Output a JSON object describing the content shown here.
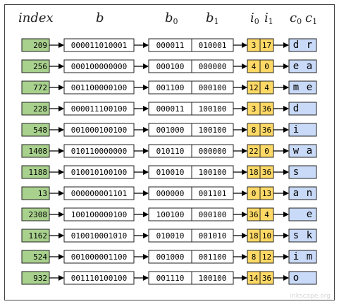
{
  "headers": {
    "index": "index",
    "b": "b",
    "b0": "b",
    "b0_sub": "0",
    "b1": "b",
    "b1_sub": "1",
    "i0": "i",
    "i0_sub": "0",
    "i1": "i",
    "i1_sub": "1",
    "c0": "c",
    "c0_sub": "0",
    "c1": "c",
    "c1_sub": "1"
  },
  "colors": {
    "index_fill": "#a9d18e",
    "bits_fill": "#ffffff",
    "i_fill": "#ffd966",
    "c_fill": "#c9daf8",
    "stroke": "#222222"
  },
  "rows": [
    {
      "index": "209",
      "b": "000011010001",
      "b0": "000011",
      "b1": "010001",
      "i0": "3",
      "i1": "17",
      "c0": "d",
      "c1": "r"
    },
    {
      "index": "256",
      "b": "000100000000",
      "b0": "000100",
      "b1": "000000",
      "i0": "4",
      "i1": "0",
      "c0": "e",
      "c1": "a"
    },
    {
      "index": "772",
      "b": "001100000100",
      "b0": "001100",
      "b1": "000100",
      "i0": "12",
      "i1": "4",
      "c0": "m",
      "c1": "e"
    },
    {
      "index": "228",
      "b": "000011100100",
      "b0": "000011",
      "b1": "100100",
      "i0": "3",
      "i1": "36",
      "c0": "d",
      "c1": ""
    },
    {
      "index": "548",
      "b": "001000100100",
      "b0": "001000",
      "b1": "100100",
      "i0": "8",
      "i1": "36",
      "c0": "i",
      "c1": ""
    },
    {
      "index": "1408",
      "b": "010110000000",
      "b0": "010110",
      "b1": "000000",
      "i0": "22",
      "i1": "0",
      "c0": "w",
      "c1": "a"
    },
    {
      "index": "1188",
      "b": "010010100100",
      "b0": "010010",
      "b1": "100100",
      "i0": "18",
      "i1": "36",
      "c0": "s",
      "c1": ""
    },
    {
      "index": "13",
      "b": "000000001101",
      "b0": "000000",
      "b1": "001101",
      "i0": "0",
      "i1": "13",
      "c0": "a",
      "c1": "n"
    },
    {
      "index": "2308",
      "b": "100100000100",
      "b0": "100100",
      "b1": "000100",
      "i0": "36",
      "i1": "4",
      "c0": "",
      "c1": "e"
    },
    {
      "index": "1162",
      "b": "010010001010",
      "b0": "010010",
      "b1": "001010",
      "i0": "18",
      "i1": "10",
      "c0": "s",
      "c1": "k"
    },
    {
      "index": "524",
      "b": "001000001100",
      "b0": "001000",
      "b1": "001100",
      "i0": "8",
      "i1": "12",
      "c0": "i",
      "c1": "m"
    },
    {
      "index": "932",
      "b": "001110100100",
      "b0": "001110",
      "b1": "100100",
      "i0": "14",
      "i1": "36",
      "c0": "o",
      "c1": ""
    }
  ],
  "watermark": "inkscape.org"
}
